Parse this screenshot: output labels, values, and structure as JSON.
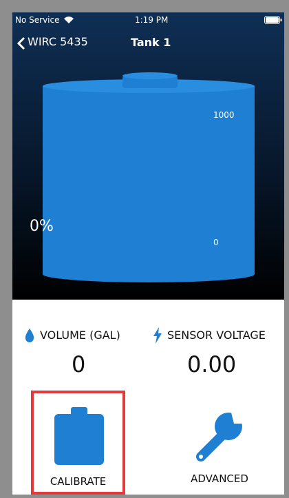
{
  "status_bar": {
    "carrier": "No Service",
    "time": "1:19 PM"
  },
  "nav": {
    "back": "WIRC 5435",
    "title": "Tank 1"
  },
  "tank": {
    "fill_label": "0%",
    "scale_top": "1000",
    "scale_bottom": "0"
  },
  "metrics": [
    {
      "label": "VOLUME (GAL)",
      "value": "0"
    },
    {
      "label": "SENSOR VOLTAGE",
      "value": "0.00"
    }
  ],
  "buttons": [
    {
      "label": "CALIBRATE"
    },
    {
      "label": "ADVANCED"
    }
  ]
}
